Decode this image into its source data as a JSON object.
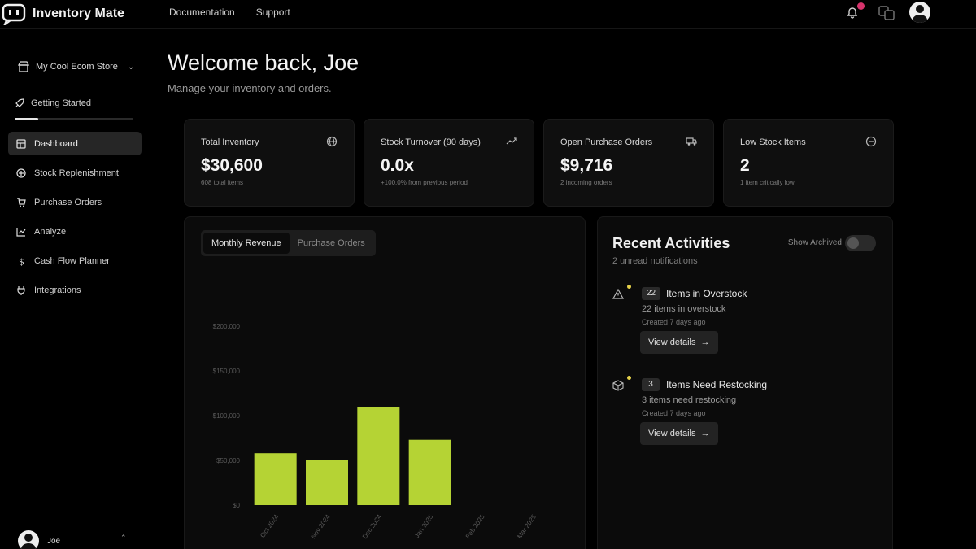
{
  "app": {
    "name": "Inventory Mate"
  },
  "topnav": {
    "documentation": "Documentation",
    "support": "Support"
  },
  "sidebar": {
    "store": "My Cool Ecom Store",
    "getting_started": "Getting Started",
    "getting_started_progress": 0.2,
    "items": [
      {
        "label": "Dashboard",
        "icon": "dashboard-icon",
        "active": true
      },
      {
        "label": "Stock Replenishment",
        "icon": "replenish-icon",
        "active": false
      },
      {
        "label": "Purchase Orders",
        "icon": "cart-icon",
        "active": false
      },
      {
        "label": "Analyze",
        "icon": "chart-icon",
        "active": false
      },
      {
        "label": "Cash Flow Planner",
        "icon": "dollar-icon",
        "active": false
      },
      {
        "label": "Integrations",
        "icon": "plug-icon",
        "active": false
      }
    ],
    "user": {
      "name": "Joe"
    }
  },
  "main": {
    "welcome": "Welcome back, Joe",
    "subtitle": "Manage your inventory and orders."
  },
  "cards": [
    {
      "title": "Total Inventory",
      "value": "$30,600",
      "sub": "608 total items",
      "icon": "globe-icon"
    },
    {
      "title": "Stock Turnover (90 days)",
      "value": "0.0x",
      "sub": "+100.0% from previous period",
      "icon": "trend-icon"
    },
    {
      "title": "Open Purchase Orders",
      "value": "$9,716",
      "sub": "2 incoming orders",
      "icon": "truck-icon"
    },
    {
      "title": "Low Stock Items",
      "value": "2",
      "sub": "1 item critically low",
      "icon": "alert-circle-icon"
    }
  ],
  "chart_tabs": {
    "revenue": "Monthly Revenue",
    "orders": "Purchase Orders"
  },
  "chart_data": {
    "type": "bar",
    "categories": [
      "Oct 2024",
      "Nov 2024",
      "Dec 2024",
      "Jan 2025",
      "Feb 2025",
      "Mar 2025"
    ],
    "values": [
      58000,
      50000,
      110000,
      73000,
      0,
      0
    ],
    "yticks": [
      0,
      50000,
      100000,
      150000,
      200000
    ],
    "ytick_labels": [
      "$0",
      "$50,000",
      "$100,000",
      "$150,000",
      "$200,000"
    ],
    "ylim": [
      0,
      200000
    ],
    "bar_color": "#b5d334",
    "title": "",
    "xlabel": "",
    "ylabel": ""
  },
  "activities": {
    "title": "Recent Activities",
    "sub": "2 unread notifications",
    "show_archived": "Show Archived",
    "items": [
      {
        "count": "22",
        "name": "Items in Overstock",
        "desc": "22 items in overstock",
        "time": "Created 7 days ago",
        "button": "View details",
        "icon": "warning-icon"
      },
      {
        "count": "3",
        "name": "Items Need Restocking",
        "desc": "3 items need restocking",
        "time": "Created 7 days ago",
        "button": "View details",
        "icon": "box-icon"
      }
    ]
  }
}
